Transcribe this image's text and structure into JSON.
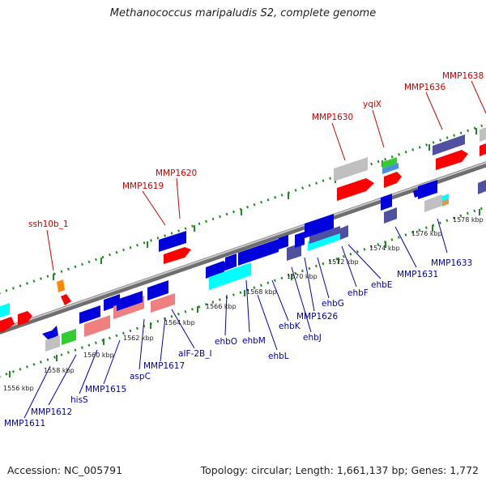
{
  "title": "Methanococcus maripaludis S2, complete genome",
  "footer": {
    "accession": "Accession: NC_005791",
    "topology": "Topology: circular; Length: 1,661,137 bp; Genes: 1,772"
  },
  "colors": {
    "forward_red": "#ff0000",
    "reverse_blue": "#0000dd",
    "pink": "#f08080",
    "cyan": "#00ffff",
    "green": "#33cc33",
    "purple": "#5050a0",
    "orange": "#ff8800",
    "gray": "#c0c0c0",
    "grid": "#228822",
    "top_label": "#cc0000",
    "bottom_label": "#0000aa"
  },
  "ticks": [
    "1556 kbp",
    "1558 kbp",
    "1560 kbp",
    "1562 kbp",
    "1564 kbp",
    "1566 kbp",
    "1568 kbp",
    "1570 kbp",
    "1572 kbp",
    "1574 kbp",
    "1576 kbp",
    "1578 kbp"
  ],
  "top_labels": [
    "ssh10b_1",
    "MMP1619",
    "MMP1620",
    "MMP1630",
    "yqiX",
    "MMP1636",
    "MMP1638"
  ],
  "bottom_labels": [
    "MMP1611",
    "MMP1612",
    "hisS",
    "MMP1615",
    "aspC",
    "MMP1617",
    "aIF-2B_I",
    "ehbO",
    "ehbM",
    "ehbL",
    "ehbK",
    "ehbJ",
    "MMP1626",
    "ehbG",
    "ehbF",
    "ehbE",
    "MMP1631",
    "MMP1633"
  ]
}
